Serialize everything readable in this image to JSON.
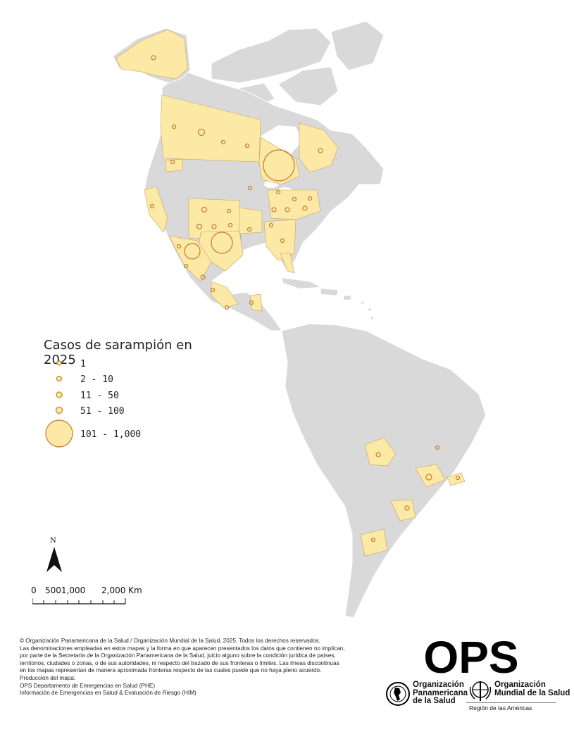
{
  "legend": {
    "title": "Casos de sarampión en 2025",
    "classes": [
      {
        "label": "1"
      },
      {
        "label": "2 - 10"
      },
      {
        "label": "11 - 50"
      },
      {
        "label": "51 - 100"
      },
      {
        "label": "101 - 1,000"
      }
    ],
    "fill_color": "#fde9a6",
    "stroke_color": "#c77a2a"
  },
  "map_colors": {
    "ocean": "#ffffff",
    "land_no_cases": "#d9d9d9",
    "land_with_cases": "#fde9a6",
    "borders": "#ffffff"
  },
  "north_arrow": {
    "label": "N"
  },
  "scale_bar": {
    "labels": [
      "0",
      "5001,000",
      "2,000 Km"
    ]
  },
  "footer": {
    "lines": [
      "©  Organización Panamericana de la Salud / Organización Mundial de la Salud, 2025. Todos los derechos reservados.",
      "Las denominaciones empleadas en estos mapas y la forma en que aparecen presentados los datos que contienen no implican,",
      "por parte de la Secretaría de la Organización Panamericana de la Salud, juicio alguno sobre la condición jurídica de países,",
      "territorios, ciudades o zonas, o de sus autoridades, ni respecto del trazado de sus fronteras o límites.  Las líneas discontinuas",
      "en los mapas representan de manera aproximada fronteras respecto de las cuales puede que no haya pleno acuerdo.",
      "Producción del mapa:",
      "OPS Departamento de Emergencias en Salud (PHE)",
      "Información de Emergencias en Salud & Evaluación de Riesgo (HIM)"
    ]
  },
  "logos": {
    "ops_word": "OPS",
    "paho_name": [
      "Organización",
      "Panamericana",
      "de la Salud"
    ],
    "who_name": [
      "Organización",
      "Mundial de la Salud"
    ],
    "region": "Región de las Américas"
  }
}
